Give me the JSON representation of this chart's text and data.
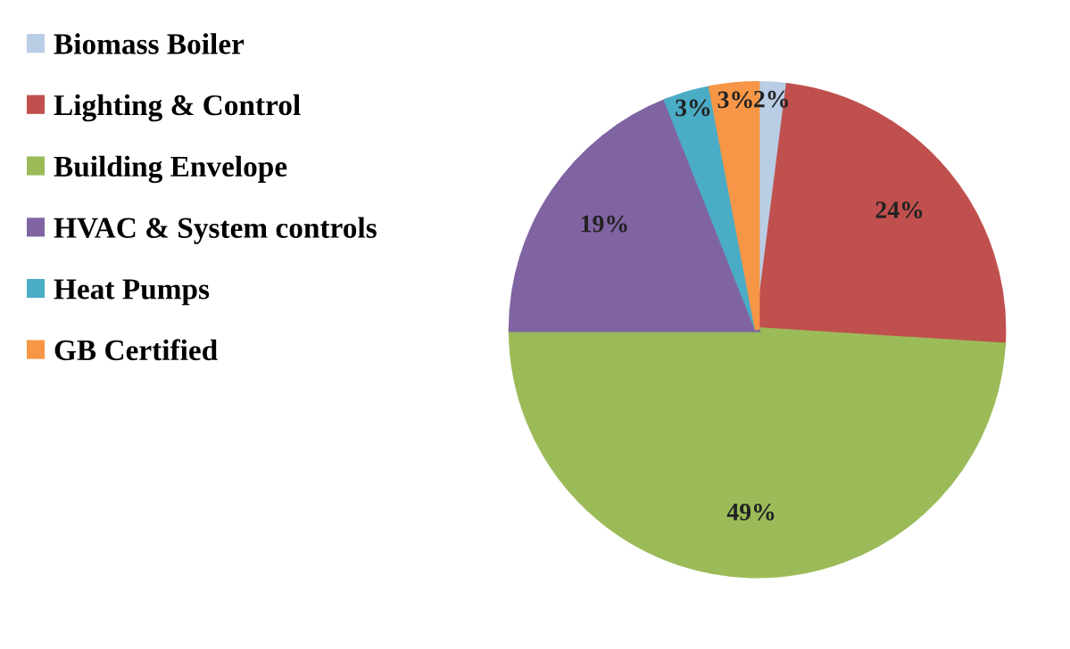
{
  "chart_data": {
    "type": "pie",
    "categories": [
      "Biomass Boiler",
      "Lighting & Control",
      "Building Envelope",
      "HVAC & System controls",
      "Heat Pumps",
      "GB Certified"
    ],
    "values": [
      2,
      24,
      49,
      19,
      3,
      3
    ],
    "colors": [
      "#b9cde5",
      "#c0504d",
      "#9bbb59",
      "#8064a2",
      "#4bacc6",
      "#f79646"
    ],
    "value_labels": [
      "2%",
      "24%",
      "49%",
      "19%",
      "3%",
      "3%"
    ],
    "legend": "left"
  }
}
